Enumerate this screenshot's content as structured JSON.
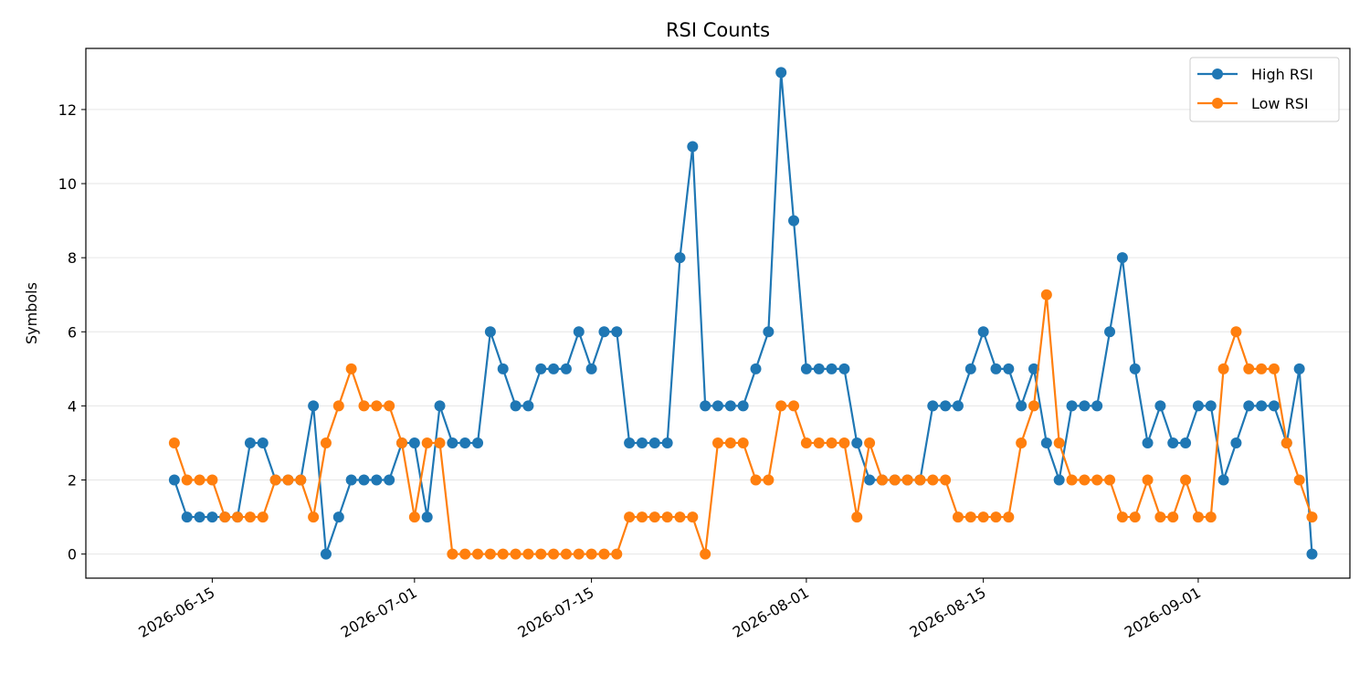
{
  "chart_data": {
    "type": "line",
    "title": "RSI Counts",
    "xlabel": "",
    "ylabel": "Symbols",
    "x_start": "2026-06-12",
    "x_end": "2026-09-08",
    "xlim": [
      "2026-06-05",
      "2026-09-13"
    ],
    "ylim": [
      -0.65,
      13.65
    ],
    "yticks": [
      0,
      2,
      4,
      6,
      8,
      10,
      12
    ],
    "xticks": [
      "2026-06-15",
      "2026-07-01",
      "2026-07-15",
      "2026-08-01",
      "2026-08-15",
      "2026-09-01"
    ],
    "grid": "horizontal",
    "legend_position": "top-right",
    "series": [
      {
        "name": "High RSI",
        "color": "#1f77b4",
        "values": [
          2,
          1,
          1,
          1,
          1,
          1,
          3,
          3,
          2,
          2,
          2,
          4,
          0,
          1,
          2,
          2,
          2,
          2,
          3,
          3,
          1,
          4,
          3,
          3,
          3,
          6,
          5,
          4,
          4,
          5,
          5,
          5,
          6,
          5,
          6,
          6,
          3,
          3,
          3,
          3,
          8,
          11,
          4,
          4,
          4,
          4,
          5,
          6,
          13,
          9,
          5,
          5,
          5,
          5,
          3,
          2,
          2,
          2,
          2,
          2,
          4,
          4,
          4,
          5,
          6,
          5,
          5,
          4,
          5,
          3,
          2,
          4,
          4,
          4,
          6,
          8,
          5,
          3,
          4,
          3,
          3,
          4,
          4,
          2,
          3,
          4,
          4,
          4,
          3,
          5,
          0
        ]
      },
      {
        "name": "Low RSI",
        "color": "#ff7f0e",
        "values": [
          3,
          2,
          2,
          2,
          1,
          1,
          1,
          1,
          2,
          2,
          2,
          1,
          3,
          4,
          5,
          4,
          4,
          4,
          3,
          1,
          3,
          3,
          0,
          0,
          0,
          0,
          0,
          0,
          0,
          0,
          0,
          0,
          0,
          0,
          0,
          0,
          1,
          1,
          1,
          1,
          1,
          1,
          0,
          3,
          3,
          3,
          2,
          2,
          4,
          4,
          3,
          3,
          3,
          3,
          1,
          3,
          2,
          2,
          2,
          2,
          2,
          2,
          1,
          1,
          1,
          1,
          1,
          3,
          4,
          7,
          3,
          2,
          2,
          2,
          2,
          1,
          1,
          2,
          1,
          1,
          2,
          1,
          1,
          5,
          6,
          5,
          5,
          5,
          3,
          2,
          1
        ]
      }
    ]
  }
}
